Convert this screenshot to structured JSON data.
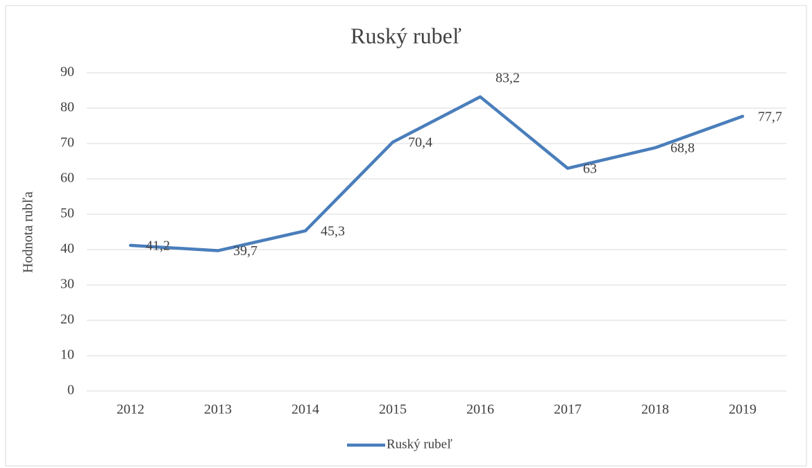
{
  "chart_data": {
    "type": "line",
    "title": "Ruský rubeľ",
    "y_label": "Hodnota rubľa",
    "categories": [
      "2012",
      "2013",
      "2014",
      "2015",
      "2016",
      "2017",
      "2018",
      "2019"
    ],
    "series": [
      {
        "name": "Ruský rubeľ",
        "color": "#4a7ebb",
        "values": [
          41.2,
          39.7,
          45.3,
          70.4,
          83.2,
          63,
          68.8,
          77.7
        ],
        "value_labels": [
          "41,2",
          "39,7",
          "45,3",
          "70,4",
          "83,2",
          "63",
          "68,8",
          "77,7"
        ]
      }
    ],
    "ylim": [
      0,
      90
    ],
    "yticks": [
      0,
      10,
      20,
      30,
      40,
      50,
      60,
      70,
      80,
      90
    ],
    "grid": true,
    "legend": "bottom"
  }
}
